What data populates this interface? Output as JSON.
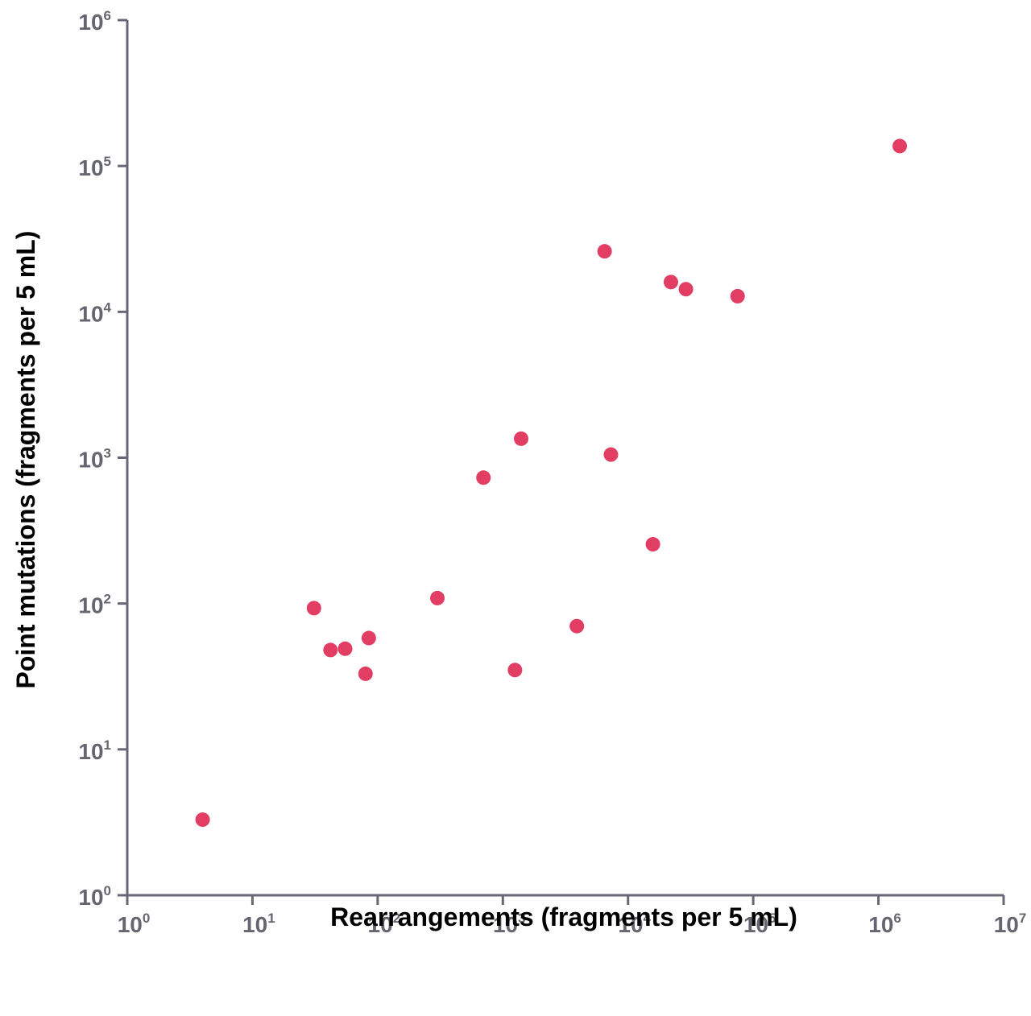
{
  "chart_data": {
    "type": "scatter",
    "title": "",
    "xlabel": "Rearrangements (fragments per 5 mL)",
    "ylabel": "Point mutations (fragments per 5 mL)",
    "xscale": "log",
    "yscale": "log",
    "xlim": [
      1,
      10000000
    ],
    "ylim": [
      1,
      1000000
    ],
    "grid": false,
    "x_ticks": [
      {
        "value": 1,
        "base": "10",
        "exp": "0"
      },
      {
        "value": 10,
        "base": "10",
        "exp": "1"
      },
      {
        "value": 100,
        "base": "10",
        "exp": "2"
      },
      {
        "value": 1000,
        "base": "10",
        "exp": "3"
      },
      {
        "value": 10000,
        "base": "10",
        "exp": "4"
      },
      {
        "value": 100000,
        "base": "10",
        "exp": "5"
      },
      {
        "value": 1000000,
        "base": "10",
        "exp": "6"
      },
      {
        "value": 10000000,
        "base": "10",
        "exp": "7"
      }
    ],
    "y_ticks": [
      {
        "value": 1,
        "base": "10",
        "exp": "0"
      },
      {
        "value": 10,
        "base": "10",
        "exp": "1"
      },
      {
        "value": 100,
        "base": "10",
        "exp": "2"
      },
      {
        "value": 1000,
        "base": "10",
        "exp": "3"
      },
      {
        "value": 10000,
        "base": "10",
        "exp": "4"
      },
      {
        "value": 100000,
        "base": "10",
        "exp": "5"
      },
      {
        "value": 1000000,
        "base": "10",
        "exp": "6"
      }
    ],
    "series": [
      {
        "color": "#e23d63",
        "points": [
          {
            "x": 4,
            "y": 3.3
          },
          {
            "x": 31,
            "y": 93
          },
          {
            "x": 42,
            "y": 48
          },
          {
            "x": 55,
            "y": 49
          },
          {
            "x": 80,
            "y": 33
          },
          {
            "x": 85,
            "y": 58
          },
          {
            "x": 300,
            "y": 109
          },
          {
            "x": 700,
            "y": 730
          },
          {
            "x": 1250,
            "y": 35
          },
          {
            "x": 1400,
            "y": 1350
          },
          {
            "x": 3900,
            "y": 70
          },
          {
            "x": 6500,
            "y": 26000
          },
          {
            "x": 7300,
            "y": 1050
          },
          {
            "x": 15800,
            "y": 255
          },
          {
            "x": 22000,
            "y": 16000
          },
          {
            "x": 29000,
            "y": 14300
          },
          {
            "x": 75000,
            "y": 12800
          },
          {
            "x": 1480000,
            "y": 137000
          }
        ]
      }
    ],
    "axis_color": "#676775",
    "tick_label_color": "#666670"
  }
}
